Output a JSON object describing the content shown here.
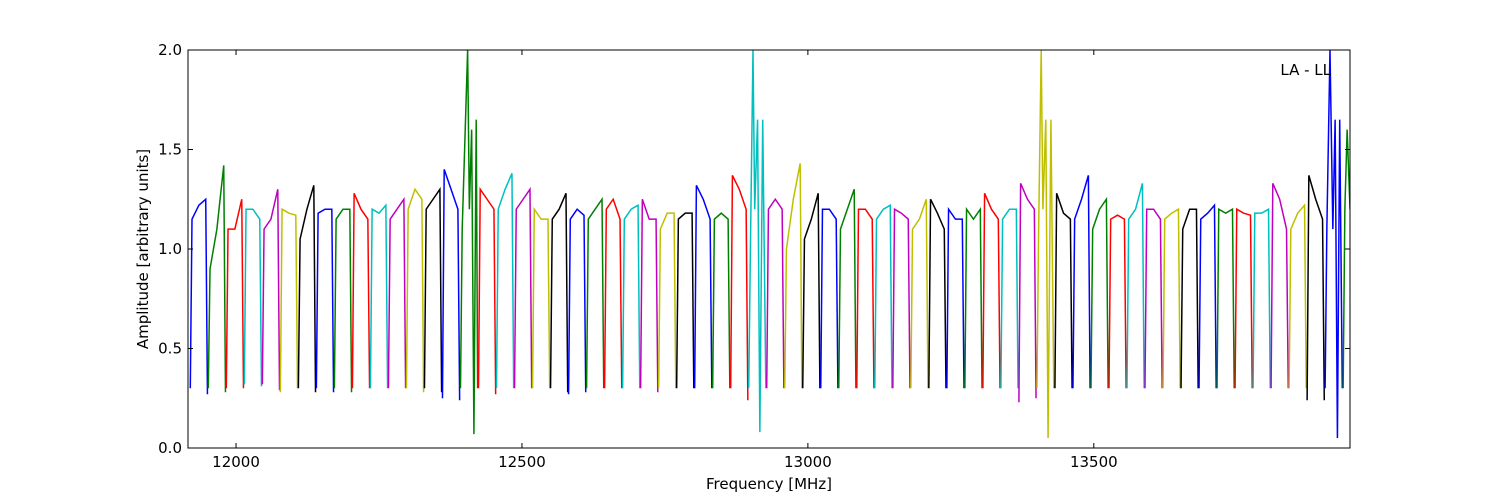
{
  "chart_data": {
    "type": "line",
    "xlabel": "Frequency [MHz]",
    "ylabel": "Amplitude [arbitrary units]",
    "annotation": "LA - LL",
    "xlim": [
      11916,
      13948
    ],
    "xticks": [
      12000,
      12500,
      13000,
      13500
    ],
    "ylim": [
      0,
      2
    ],
    "yticks": [
      {
        "value": 0,
        "label": "0.0"
      },
      0.5,
      {
        "value": 1,
        "label": "1.0"
      },
      1.5,
      {
        "value": 2,
        "label": "2.0"
      }
    ],
    "series": [
      {
        "color": "#0000ff",
        "x": [
          11920,
          11923,
          11935,
          11947,
          11950
        ],
        "values": [
          0.3,
          1.15,
          1.22,
          1.25,
          0.27
        ]
      },
      {
        "color": "#008000",
        "x": [
          11951.5,
          11954.5,
          11966.5,
          11978.5,
          11981.5
        ],
        "values": [
          0.3,
          0.9,
          1.1,
          1.42,
          0.28
        ]
      },
      {
        "color": "#ff0000",
        "x": [
          11983,
          11986,
          11998,
          12010,
          12013
        ],
        "values": [
          0.3,
          1.1,
          1.1,
          1.25,
          0.3
        ]
      },
      {
        "color": "#00bfbf",
        "x": [
          12014.5,
          12017.5,
          12029.5,
          12041.5,
          12044.5
        ],
        "values": [
          0.32,
          1.2,
          1.2,
          1.15,
          0.31
        ]
      },
      {
        "color": "#bf00bf",
        "x": [
          12046,
          12049,
          12061,
          12073,
          12076
        ],
        "values": [
          0.32,
          1.1,
          1.15,
          1.3,
          0.29
        ]
      },
      {
        "color": "#bfbf00",
        "x": [
          12077.5,
          12080.5,
          12092.5,
          12104.5,
          12107.5
        ],
        "values": [
          0.28,
          1.2,
          1.18,
          1.17,
          0.3
        ]
      },
      {
        "color": "#000000",
        "x": [
          12109,
          12112,
          12124,
          12136,
          12139
        ],
        "values": [
          0.3,
          1.05,
          1.2,
          1.32,
          0.28
        ]
      },
      {
        "color": "#0000ff",
        "x": [
          12140.5,
          12143.5,
          12155.5,
          12167.5,
          12170.5
        ],
        "values": [
          0.3,
          1.18,
          1.2,
          1.2,
          0.28
        ]
      },
      {
        "color": "#008000",
        "x": [
          12172,
          12175,
          12187,
          12199,
          12202
        ],
        "values": [
          0.3,
          1.15,
          1.2,
          1.2,
          0.28
        ]
      },
      {
        "color": "#ff0000",
        "x": [
          12203.5,
          12206.5,
          12218.5,
          12230.5,
          12233.5
        ],
        "values": [
          0.3,
          1.28,
          1.2,
          1.15,
          0.3
        ]
      },
      {
        "color": "#00bfbf",
        "x": [
          12235,
          12238,
          12250,
          12262,
          12265
        ],
        "values": [
          0.3,
          1.2,
          1.18,
          1.22,
          0.3
        ]
      },
      {
        "color": "#bf00bf",
        "x": [
          12266.5,
          12269.5,
          12281.5,
          12293.5,
          12296.5
        ],
        "values": [
          0.3,
          1.15,
          1.2,
          1.25,
          0.3
        ]
      },
      {
        "color": "#bfbf00",
        "x": [
          12298,
          12301,
          12313,
          12325,
          12328
        ],
        "values": [
          0.3,
          1.2,
          1.3,
          1.25,
          0.28
        ]
      },
      {
        "color": "#000000",
        "x": [
          12329.5,
          12332.5,
          12344.5,
          12356.5,
          12359.5
        ],
        "values": [
          0.3,
          1.2,
          1.25,
          1.3,
          0.28
        ]
      },
      {
        "color": "#0000ff",
        "x": [
          12361,
          12364,
          12376,
          12388,
          12391
        ],
        "values": [
          0.25,
          1.4,
          1.3,
          1.2,
          0.24
        ]
      },
      {
        "color": "#008000",
        "x": [
          12392.5,
          12395.5,
          12405,
          12408,
          12412,
          12416,
          12420,
          12422.5
        ],
        "values": [
          0.3,
          1.1,
          2.0,
          1.2,
          1.6,
          0.07,
          1.65,
          0.3
        ]
      },
      {
        "color": "#ff0000",
        "x": [
          12424,
          12427,
          12439,
          12451,
          12454
        ],
        "values": [
          0.3,
          1.3,
          1.25,
          1.2,
          0.27
        ]
      },
      {
        "color": "#00bfbf",
        "x": [
          12455.5,
          12458.5,
          12470.5,
          12482.5,
          12485.5
        ],
        "values": [
          0.3,
          1.2,
          1.3,
          1.38,
          0.3
        ]
      },
      {
        "color": "#bf00bf",
        "x": [
          12487,
          12490,
          12502,
          12514,
          12517
        ],
        "values": [
          0.3,
          1.2,
          1.25,
          1.3,
          0.3
        ]
      },
      {
        "color": "#bfbf00",
        "x": [
          12518.5,
          12521.5,
          12533.5,
          12545.5,
          12548.5
        ],
        "values": [
          0.3,
          1.2,
          1.15,
          1.15,
          0.3
        ]
      },
      {
        "color": "#000000",
        "x": [
          12550,
          12553,
          12565,
          12577,
          12580
        ],
        "values": [
          0.3,
          1.15,
          1.2,
          1.28,
          0.28
        ]
      },
      {
        "color": "#0000ff",
        "x": [
          12581.5,
          12584.5,
          12596.5,
          12608.5,
          12611.5
        ],
        "values": [
          0.27,
          1.15,
          1.2,
          1.17,
          0.28
        ]
      },
      {
        "color": "#008000",
        "x": [
          12613,
          12616,
          12628,
          12640,
          12643
        ],
        "values": [
          0.3,
          1.15,
          1.2,
          1.25,
          0.3
        ]
      },
      {
        "color": "#ff0000",
        "x": [
          12644.5,
          12647.5,
          12659.5,
          12671.5,
          12674.5
        ],
        "values": [
          0.3,
          1.2,
          1.25,
          1.15,
          0.3
        ]
      },
      {
        "color": "#00bfbf",
        "x": [
          12676,
          12679,
          12691,
          12703,
          12706
        ],
        "values": [
          0.3,
          1.15,
          1.2,
          1.22,
          0.3
        ]
      },
      {
        "color": "#bf00bf",
        "x": [
          12707.5,
          12710.5,
          12722.5,
          12734.5,
          12737.5
        ],
        "values": [
          0.3,
          1.25,
          1.15,
          1.15,
          0.28
        ]
      },
      {
        "color": "#bfbf00",
        "x": [
          12739,
          12742,
          12754,
          12766,
          12769
        ],
        "values": [
          0.3,
          1.1,
          1.18,
          1.18,
          0.3
        ]
      },
      {
        "color": "#000000",
        "x": [
          12770.5,
          12773.5,
          12785.5,
          12797.5,
          12800.5
        ],
        "values": [
          0.3,
          1.15,
          1.18,
          1.18,
          0.3
        ]
      },
      {
        "color": "#0000ff",
        "x": [
          12802,
          12805,
          12817,
          12829,
          12832
        ],
        "values": [
          0.3,
          1.32,
          1.25,
          1.15,
          0.3
        ]
      },
      {
        "color": "#008000",
        "x": [
          12833.5,
          12836.5,
          12848.5,
          12860.5,
          12863.5
        ],
        "values": [
          0.3,
          1.15,
          1.18,
          1.15,
          0.3
        ]
      },
      {
        "color": "#ff0000",
        "x": [
          12865,
          12868,
          12880,
          12892,
          12895
        ],
        "values": [
          0.3,
          1.37,
          1.3,
          1.2,
          0.24
        ]
      },
      {
        "color": "#00bfbf",
        "x": [
          12896.5,
          12899.5,
          12904,
          12907,
          12912,
          12916,
          12921,
          12926.5
        ],
        "values": [
          0.3,
          1.0,
          2.0,
          1.2,
          1.65,
          0.08,
          1.65,
          0.3
        ]
      },
      {
        "color": "#bf00bf",
        "x": [
          12928,
          12931,
          12943,
          12955,
          12958
        ],
        "values": [
          0.3,
          1.2,
          1.25,
          1.2,
          0.3
        ]
      },
      {
        "color": "#bfbf00",
        "x": [
          12959.5,
          12962.5,
          12974.5,
          12986.5,
          12989.5
        ],
        "values": [
          0.3,
          1.0,
          1.25,
          1.43,
          0.3
        ]
      },
      {
        "color": "#000000",
        "x": [
          12991,
          12994,
          13006,
          13018,
          13021
        ],
        "values": [
          0.3,
          1.05,
          1.15,
          1.28,
          0.3
        ]
      },
      {
        "color": "#0000ff",
        "x": [
          13022.5,
          13025.5,
          13037.5,
          13049.5,
          13052.5
        ],
        "values": [
          0.3,
          1.2,
          1.2,
          1.15,
          0.3
        ]
      },
      {
        "color": "#008000",
        "x": [
          13054,
          13057,
          13069,
          13081,
          13084
        ],
        "values": [
          0.3,
          1.1,
          1.2,
          1.3,
          0.3
        ]
      },
      {
        "color": "#ff0000",
        "x": [
          13085.5,
          13088.5,
          13100.5,
          13112.5,
          13115.5
        ],
        "values": [
          0.3,
          1.2,
          1.2,
          1.15,
          0.3
        ]
      },
      {
        "color": "#00bfbf",
        "x": [
          13117,
          13120,
          13132,
          13144,
          13147
        ],
        "values": [
          0.3,
          1.15,
          1.2,
          1.22,
          0.3
        ]
      },
      {
        "color": "#bf00bf",
        "x": [
          13148.5,
          13151.5,
          13163.5,
          13175.5,
          13178.5
        ],
        "values": [
          0.3,
          1.2,
          1.18,
          1.15,
          0.3
        ]
      },
      {
        "color": "#bfbf00",
        "x": [
          13180,
          13183,
          13195,
          13207,
          13210
        ],
        "values": [
          0.3,
          1.1,
          1.15,
          1.25,
          0.3
        ]
      },
      {
        "color": "#000000",
        "x": [
          13211.5,
          13214.5,
          13226.5,
          13238.5,
          13241.5
        ],
        "values": [
          0.3,
          1.25,
          1.18,
          1.1,
          0.3
        ]
      },
      {
        "color": "#0000ff",
        "x": [
          13243,
          13246,
          13258,
          13270,
          13273
        ],
        "values": [
          0.3,
          1.2,
          1.15,
          1.15,
          0.3
        ]
      },
      {
        "color": "#008000",
        "x": [
          13274.5,
          13277.5,
          13289.5,
          13301.5,
          13304.5
        ],
        "values": [
          0.3,
          1.2,
          1.15,
          1.2,
          0.3
        ]
      },
      {
        "color": "#ff0000",
        "x": [
          13306,
          13309,
          13321,
          13333,
          13336
        ],
        "values": [
          0.3,
          1.28,
          1.2,
          1.15,
          0.3
        ]
      },
      {
        "color": "#00bfbf",
        "x": [
          13337.5,
          13340.5,
          13352.5,
          13364.5,
          13367.5
        ],
        "values": [
          0.3,
          1.15,
          1.2,
          1.2,
          0.3
        ]
      },
      {
        "color": "#bf00bf",
        "x": [
          13369,
          13372,
          13384,
          13396,
          13399
        ],
        "values": [
          0.23,
          1.33,
          1.25,
          1.2,
          0.25
        ]
      },
      {
        "color": "#bfbf00",
        "x": [
          13400.5,
          13403.5,
          13408,
          13411,
          13416,
          13420,
          13425,
          13430
        ],
        "values": [
          0.3,
          1.1,
          2.0,
          1.2,
          1.65,
          0.05,
          1.65,
          0.3
        ]
      },
      {
        "color": "#000000",
        "x": [
          13432,
          13435,
          13447,
          13459,
          13462
        ],
        "values": [
          0.3,
          1.28,
          1.18,
          1.15,
          0.3
        ]
      },
      {
        "color": "#0000ff",
        "x": [
          13463.5,
          13466.5,
          13478.5,
          13490.5,
          13493.5
        ],
        "values": [
          0.3,
          1.15,
          1.25,
          1.37,
          0.3
        ]
      },
      {
        "color": "#008000",
        "x": [
          13495,
          13498,
          13510,
          13522,
          13525
        ],
        "values": [
          0.3,
          1.1,
          1.2,
          1.25,
          0.3
        ]
      },
      {
        "color": "#ff0000",
        "x": [
          13526.5,
          13529.5,
          13541.5,
          13553.5,
          13556.5
        ],
        "values": [
          0.3,
          1.15,
          1.17,
          1.15,
          0.3
        ]
      },
      {
        "color": "#00bfbf",
        "x": [
          13558,
          13561,
          13573,
          13585,
          13588
        ],
        "values": [
          0.3,
          1.15,
          1.2,
          1.33,
          0.3
        ]
      },
      {
        "color": "#bf00bf",
        "x": [
          13589.5,
          13592.5,
          13604.5,
          13616.5,
          13619.5
        ],
        "values": [
          0.3,
          1.2,
          1.2,
          1.15,
          0.3
        ]
      },
      {
        "color": "#bfbf00",
        "x": [
          13621,
          13624,
          13636,
          13648,
          13651
        ],
        "values": [
          0.3,
          1.15,
          1.18,
          1.2,
          0.3
        ]
      },
      {
        "color": "#000000",
        "x": [
          13652.5,
          13655.5,
          13667.5,
          13679.5,
          13682.5
        ],
        "values": [
          0.3,
          1.1,
          1.2,
          1.2,
          0.3
        ]
      },
      {
        "color": "#0000ff",
        "x": [
          13684,
          13687,
          13699,
          13711,
          13714
        ],
        "values": [
          0.3,
          1.15,
          1.18,
          1.22,
          0.3
        ]
      },
      {
        "color": "#008000",
        "x": [
          13715.5,
          13718.5,
          13730.5,
          13742.5,
          13745.5
        ],
        "values": [
          0.3,
          1.2,
          1.18,
          1.2,
          0.3
        ]
      },
      {
        "color": "#ff0000",
        "x": [
          13747,
          13750,
          13762,
          13774,
          13777
        ],
        "values": [
          0.3,
          1.2,
          1.18,
          1.17,
          0.3
        ]
      },
      {
        "color": "#00bfbf",
        "x": [
          13778.5,
          13781.5,
          13793.5,
          13805.5,
          13808.5
        ],
        "values": [
          0.3,
          1.18,
          1.18,
          1.2,
          0.3
        ]
      },
      {
        "color": "#bf00bf",
        "x": [
          13810,
          13813,
          13825,
          13837,
          13840
        ],
        "values": [
          0.3,
          1.33,
          1.25,
          1.1,
          0.3
        ]
      },
      {
        "color": "#bfbf00",
        "x": [
          13841.5,
          13844.5,
          13856.5,
          13868.5,
          13871.5
        ],
        "values": [
          0.3,
          1.1,
          1.18,
          1.22,
          0.3
        ]
      },
      {
        "color": "#000000",
        "x": [
          13873,
          13876,
          13888,
          13900,
          13903
        ],
        "values": [
          0.24,
          1.37,
          1.25,
          1.15,
          0.24
        ]
      },
      {
        "color": "#0000ff",
        "x": [
          13904.5,
          13907.5,
          13913,
          13918,
          13922,
          13926,
          13930,
          13934.5
        ],
        "values": [
          0.3,
          1.1,
          2.0,
          1.1,
          1.65,
          0.05,
          1.65,
          0.3
        ]
      },
      {
        "color": "#008000",
        "x": [
          13936,
          13939,
          13943,
          13948
        ],
        "values": [
          0.3,
          1.2,
          1.6,
          1.2
        ]
      }
    ]
  }
}
